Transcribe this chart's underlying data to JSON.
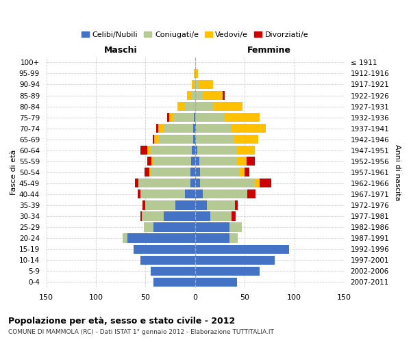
{
  "age_groups": [
    "0-4",
    "5-9",
    "10-14",
    "15-19",
    "20-24",
    "25-29",
    "30-34",
    "35-39",
    "40-44",
    "45-49",
    "50-54",
    "55-59",
    "60-64",
    "65-69",
    "70-74",
    "75-79",
    "80-84",
    "85-89",
    "90-94",
    "95-99",
    "100+"
  ],
  "birth_years": [
    "2007-2011",
    "2002-2006",
    "1997-2001",
    "1992-1996",
    "1987-1991",
    "1982-1986",
    "1977-1981",
    "1972-1976",
    "1967-1971",
    "1962-1966",
    "1957-1961",
    "1952-1956",
    "1947-1951",
    "1942-1946",
    "1937-1941",
    "1932-1936",
    "1927-1931",
    "1922-1926",
    "1917-1921",
    "1912-1916",
    "≤ 1911"
  ],
  "male": {
    "celibi": [
      42,
      45,
      55,
      62,
      68,
      42,
      32,
      20,
      10,
      5,
      5,
      4,
      3,
      2,
      2,
      1,
      0,
      0,
      0,
      0,
      0
    ],
    "coniugati": [
      0,
      0,
      0,
      0,
      5,
      10,
      22,
      30,
      45,
      52,
      40,
      38,
      42,
      35,
      30,
      20,
      10,
      3,
      1,
      0,
      0
    ],
    "vedovi": [
      0,
      0,
      0,
      0,
      0,
      0,
      0,
      0,
      0,
      0,
      1,
      2,
      3,
      4,
      5,
      5,
      8,
      5,
      2,
      1,
      0
    ],
    "divorziati": [
      0,
      0,
      0,
      0,
      0,
      0,
      1,
      3,
      3,
      4,
      5,
      4,
      7,
      2,
      2,
      2,
      0,
      0,
      0,
      0,
      0
    ]
  },
  "female": {
    "nubili": [
      42,
      65,
      80,
      95,
      35,
      35,
      15,
      12,
      8,
      5,
      5,
      4,
      2,
      1,
      1,
      0,
      0,
      0,
      0,
      0,
      0
    ],
    "coniugate": [
      0,
      0,
      0,
      0,
      8,
      12,
      22,
      28,
      45,
      55,
      40,
      38,
      40,
      38,
      35,
      30,
      18,
      8,
      3,
      1,
      0
    ],
    "vedove": [
      0,
      0,
      0,
      0,
      0,
      0,
      0,
      0,
      0,
      5,
      5,
      10,
      18,
      25,
      35,
      35,
      30,
      20,
      15,
      2,
      0
    ],
    "divorziate": [
      0,
      0,
      0,
      0,
      0,
      0,
      4,
      3,
      8,
      12,
      5,
      8,
      0,
      0,
      0,
      0,
      0,
      2,
      0,
      0,
      0
    ]
  },
  "colors": {
    "celibi": "#4472c4",
    "coniugati": "#b5c994",
    "vedovi": "#ffc000",
    "divorziati": "#cc0000"
  },
  "title": "Popolazione per età, sesso e stato civile - 2012",
  "subtitle": "COMUNE DI MAMMOLA (RC) - Dati ISTAT 1° gennaio 2012 - Elaborazione TUTTITALIA.IT",
  "xlabel_left": "Maschi",
  "xlabel_right": "Femmine",
  "ylabel_left": "Fasce di età",
  "ylabel_right": "Anni di nascita",
  "xlim": 150,
  "legend_labels": [
    "Celibi/Nubili",
    "Coniugati/e",
    "Vedovi/e",
    "Divorziati/e"
  ],
  "background_color": "#ffffff",
  "grid_color": "#cccccc"
}
